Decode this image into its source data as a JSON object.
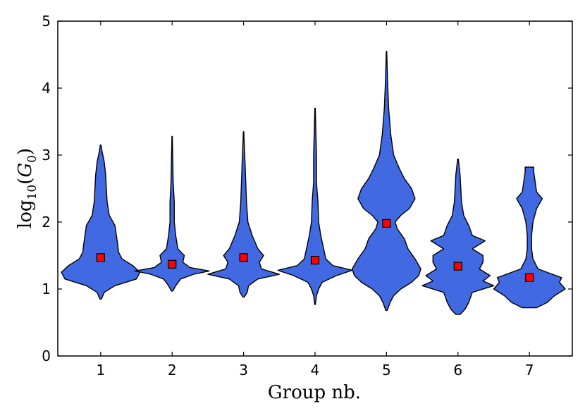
{
  "chart_data": {
    "type": "violin",
    "xlabel": "Group nb.",
    "ylabel": {
      "main": "log",
      "sub": "10",
      "open": "(",
      "var": "G",
      "var_sub": "0",
      "close": ")"
    },
    "ylim": [
      0,
      5
    ],
    "yticks": [
      "0",
      "1",
      "2",
      "3",
      "4",
      "5"
    ],
    "categories": [
      "1",
      "2",
      "3",
      "4",
      "5",
      "6",
      "7"
    ],
    "grid": false,
    "colors": {
      "violin_fill": "#4169e1",
      "violin_edge": "#000000",
      "marker_fill": "#ff0000",
      "marker_edge": "#000000"
    },
    "groups": [
      {
        "group": "1",
        "min": 0.85,
        "max": 3.15,
        "marker": 1.47,
        "profile": [
          [
            0.85,
            0.01
          ],
          [
            0.95,
            0.05
          ],
          [
            1.05,
            0.2
          ],
          [
            1.15,
            0.5
          ],
          [
            1.25,
            0.55
          ],
          [
            1.35,
            0.45
          ],
          [
            1.45,
            0.3
          ],
          [
            1.55,
            0.25
          ],
          [
            1.65,
            0.24
          ],
          [
            1.8,
            0.22
          ],
          [
            1.95,
            0.2
          ],
          [
            2.1,
            0.12
          ],
          [
            2.3,
            0.09
          ],
          [
            2.5,
            0.08
          ],
          [
            2.7,
            0.07
          ],
          [
            2.9,
            0.05
          ],
          [
            3.05,
            0.02
          ],
          [
            3.15,
            0.005
          ]
        ]
      },
      {
        "group": "2",
        "min": 0.97,
        "max": 3.28,
        "marker": 1.37,
        "profile": [
          [
            0.97,
            0.01
          ],
          [
            1.05,
            0.05
          ],
          [
            1.15,
            0.12
          ],
          [
            1.22,
            0.3
          ],
          [
            1.27,
            0.52
          ],
          [
            1.32,
            0.25
          ],
          [
            1.4,
            0.15
          ],
          [
            1.5,
            0.17
          ],
          [
            1.6,
            0.08
          ],
          [
            1.8,
            0.05
          ],
          [
            2.0,
            0.03
          ],
          [
            2.3,
            0.03
          ],
          [
            2.6,
            0.015
          ],
          [
            3.0,
            0.008
          ],
          [
            3.28,
            0.003
          ]
        ]
      },
      {
        "group": "3",
        "min": 0.88,
        "max": 3.35,
        "marker": 1.47,
        "profile": [
          [
            0.88,
            0.01
          ],
          [
            0.95,
            0.05
          ],
          [
            1.05,
            0.07
          ],
          [
            1.15,
            0.2
          ],
          [
            1.22,
            0.5
          ],
          [
            1.3,
            0.25
          ],
          [
            1.4,
            0.22
          ],
          [
            1.5,
            0.28
          ],
          [
            1.6,
            0.2
          ],
          [
            1.8,
            0.12
          ],
          [
            2.0,
            0.06
          ],
          [
            2.3,
            0.04
          ],
          [
            2.6,
            0.03
          ],
          [
            2.9,
            0.02
          ],
          [
            3.2,
            0.008
          ],
          [
            3.35,
            0.003
          ]
        ]
      },
      {
        "group": "4",
        "min": 0.77,
        "max": 3.7,
        "marker": 1.43,
        "profile": [
          [
            0.77,
            0.005
          ],
          [
            0.9,
            0.02
          ],
          [
            1.0,
            0.05
          ],
          [
            1.1,
            0.1
          ],
          [
            1.2,
            0.3
          ],
          [
            1.28,
            0.52
          ],
          [
            1.35,
            0.25
          ],
          [
            1.45,
            0.15
          ],
          [
            1.6,
            0.12
          ],
          [
            1.8,
            0.08
          ],
          [
            2.0,
            0.05
          ],
          [
            2.3,
            0.04
          ],
          [
            2.6,
            0.02
          ],
          [
            3.0,
            0.02
          ],
          [
            3.4,
            0.01
          ],
          [
            3.7,
            0.003
          ]
        ]
      },
      {
        "group": "5",
        "min": 0.68,
        "max": 4.55,
        "marker": 1.98,
        "profile": [
          [
            0.68,
            0.01
          ],
          [
            0.8,
            0.05
          ],
          [
            0.9,
            0.1
          ],
          [
            1.0,
            0.2
          ],
          [
            1.1,
            0.35
          ],
          [
            1.2,
            0.45
          ],
          [
            1.3,
            0.48
          ],
          [
            1.45,
            0.4
          ],
          [
            1.6,
            0.3
          ],
          [
            1.75,
            0.25
          ],
          [
            1.9,
            0.15
          ],
          [
            2.0,
            0.12
          ],
          [
            2.1,
            0.2
          ],
          [
            2.2,
            0.32
          ],
          [
            2.35,
            0.4
          ],
          [
            2.5,
            0.35
          ],
          [
            2.65,
            0.25
          ],
          [
            2.8,
            0.18
          ],
          [
            3.0,
            0.1
          ],
          [
            3.3,
            0.06
          ],
          [
            3.7,
            0.03
          ],
          [
            4.1,
            0.015
          ],
          [
            4.55,
            0.003
          ]
        ]
      },
      {
        "group": "6",
        "min": 0.62,
        "max": 2.94,
        "marker": 1.34,
        "profile": [
          [
            0.62,
            0.03
          ],
          [
            0.7,
            0.1
          ],
          [
            0.8,
            0.15
          ],
          [
            0.95,
            0.2
          ],
          [
            1.05,
            0.5
          ],
          [
            1.12,
            0.35
          ],
          [
            1.2,
            0.45
          ],
          [
            1.3,
            0.3
          ],
          [
            1.4,
            0.35
          ],
          [
            1.5,
            0.35
          ],
          [
            1.6,
            0.2
          ],
          [
            1.72,
            0.38
          ],
          [
            1.8,
            0.2
          ],
          [
            1.95,
            0.15
          ],
          [
            2.1,
            0.08
          ],
          [
            2.3,
            0.05
          ],
          [
            2.5,
            0.04
          ],
          [
            2.7,
            0.03
          ],
          [
            2.94,
            0.005
          ]
        ]
      },
      {
        "group": "7",
        "min": 0.72,
        "max": 2.82,
        "marker": 1.17,
        "profile": [
          [
            0.72,
            0.1
          ],
          [
            0.8,
            0.25
          ],
          [
            0.9,
            0.35
          ],
          [
            1.0,
            0.5
          ],
          [
            1.1,
            0.42
          ],
          [
            1.17,
            0.45
          ],
          [
            1.3,
            0.12
          ],
          [
            1.45,
            0.05
          ],
          [
            1.6,
            0.03
          ],
          [
            1.8,
            0.03
          ],
          [
            2.0,
            0.05
          ],
          [
            2.2,
            0.1
          ],
          [
            2.35,
            0.18
          ],
          [
            2.45,
            0.1
          ],
          [
            2.6,
            0.08
          ],
          [
            2.75,
            0.06
          ],
          [
            2.82,
            0.06
          ]
        ]
      }
    ]
  }
}
